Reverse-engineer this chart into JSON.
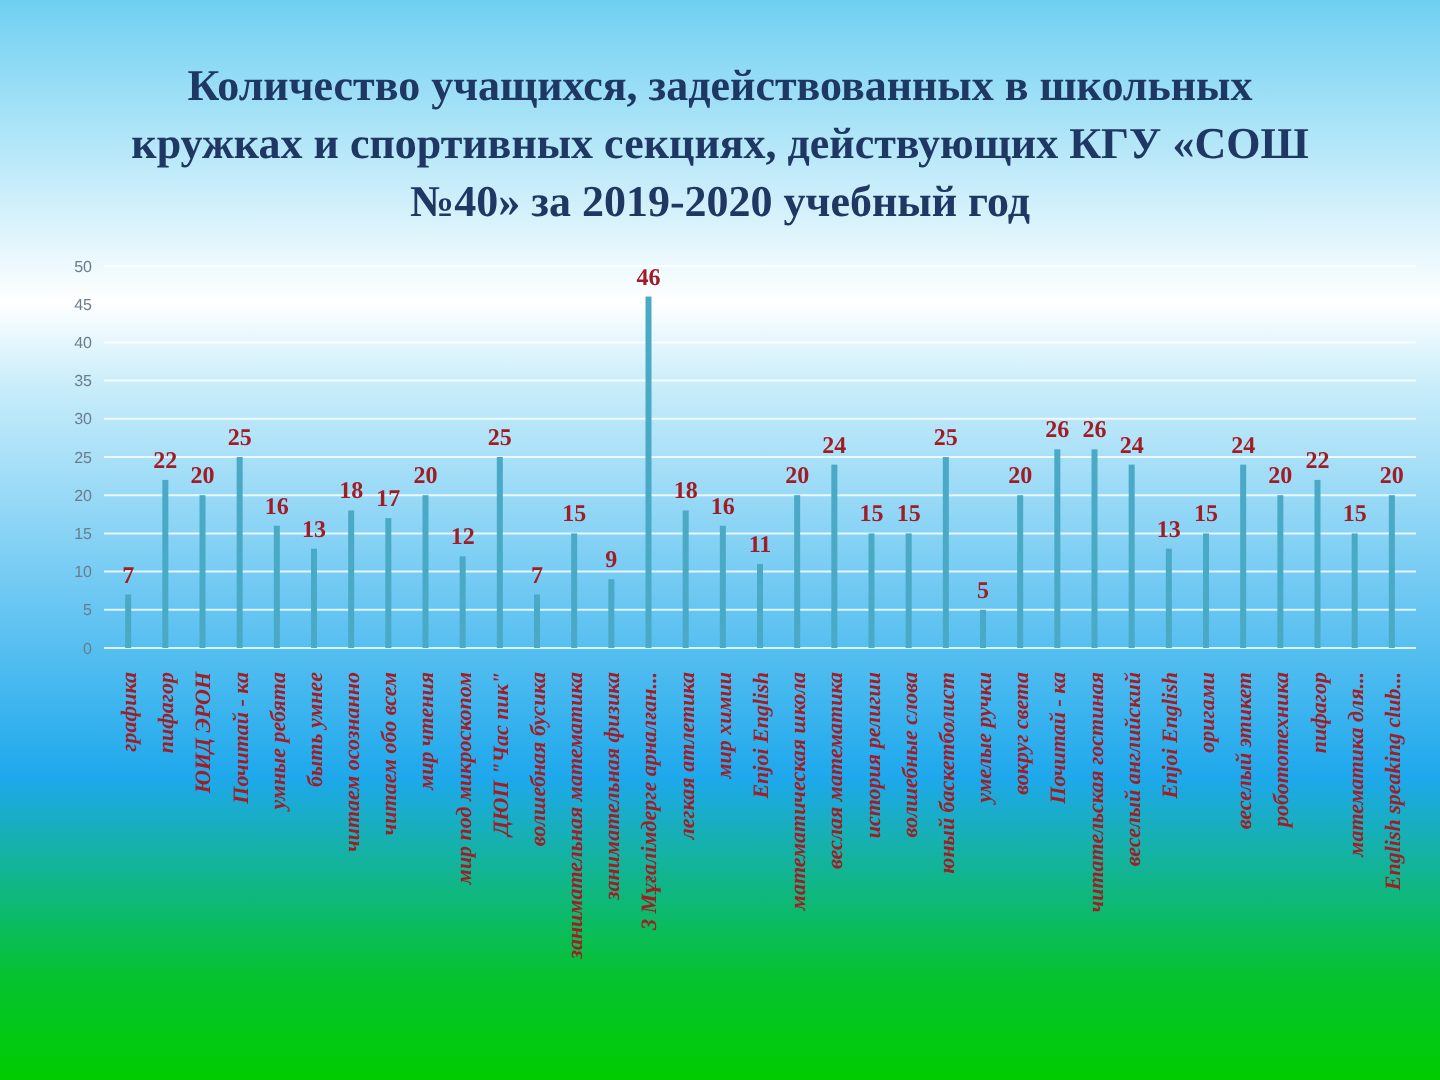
{
  "chart_data": {
    "type": "bar",
    "title": "Количество учащихся, задействованных в школьных кружках и спортивных секциях, действующих КГУ «СОШ №40» за 2019-2020 учебный год",
    "categories": [
      "графика",
      "пифагор",
      "ЮИД ЭРОН",
      "Почитай - ка",
      "умные ребята",
      "быть умнее",
      "читаем осознанно",
      "читаем обо всем",
      "мир чтения",
      "мир под микроскопом",
      "ДЮП \"Час пик\"",
      "волшебная бусика",
      "занимательная математика",
      "занимательная физика",
      "3 Мұғалімдерге арналған...",
      "легкая атлетика",
      "мир химии",
      "Enjoi English",
      "математическая школа",
      "веслая математика",
      "история религии",
      "волшебные слова",
      "юный баскетболист",
      "умелые ручки",
      "вокруг света",
      "Почитай - ка",
      "читательская гостиная",
      "веселый английский",
      "Enjoi English",
      "оригами",
      "веселый этикет",
      "робототехника",
      "пифагор",
      "математика для...",
      "English speaking club..."
    ],
    "values": [
      7,
      22,
      20,
      25,
      16,
      13,
      18,
      17,
      20,
      12,
      25,
      7,
      15,
      9,
      46,
      18,
      16,
      11,
      20,
      24,
      15,
      15,
      25,
      5,
      20,
      26,
      26,
      24,
      13,
      15,
      24,
      20,
      22,
      15,
      20
    ],
    "color": "#4aa9c4",
    "ylim": [
      0,
      50
    ],
    "yticks": [
      0,
      5,
      10,
      15,
      20,
      25,
      30,
      35,
      40,
      45,
      50
    ],
    "grid": "y",
    "data_labels": true
  }
}
